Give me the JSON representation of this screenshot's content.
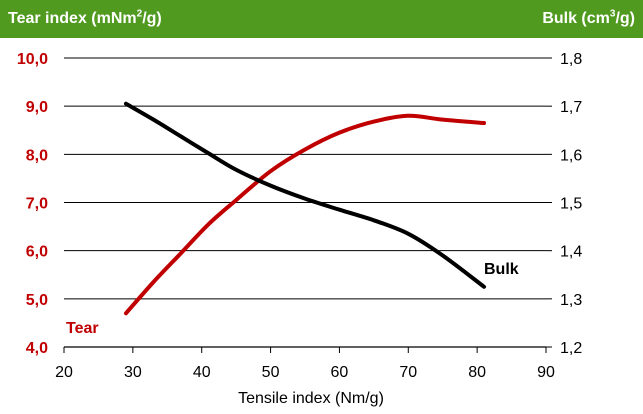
{
  "header": {
    "left_title_prefix": "Tear index (mNm",
    "left_title_sup": "2",
    "left_title_suffix": "/g)",
    "right_title_prefix": "Bulk (cm",
    "right_title_sup": "3",
    "right_title_suffix": "/g)"
  },
  "colors": {
    "header_bg": "#4f9a1f",
    "tear": "#c00000",
    "bulk": "#000000"
  },
  "chart_data": {
    "type": "line",
    "xlabel": "Tensile index (Nm/g)",
    "xlim": [
      20,
      90
    ],
    "x_ticks": [
      "20",
      "30",
      "40",
      "50",
      "60",
      "70",
      "80",
      "90"
    ],
    "x_tick_values": [
      20,
      30,
      40,
      50,
      60,
      70,
      80,
      90
    ],
    "y_left": {
      "ylim": [
        4.0,
        10.0
      ],
      "ticks": [
        "4,0",
        "5,0",
        "6,0",
        "7,0",
        "8,0",
        "9,0",
        "10,0"
      ],
      "tick_values": [
        4,
        5,
        6,
        7,
        8,
        9,
        10
      ]
    },
    "y_right": {
      "ylim": [
        1.2,
        1.8
      ],
      "ticks": [
        "1,2",
        "1,3",
        "1,4",
        "1,5",
        "1,6",
        "1,7",
        "1,8"
      ],
      "tick_values": [
        1.2,
        1.3,
        1.4,
        1.5,
        1.6,
        1.7,
        1.8
      ]
    },
    "grid": true,
    "series": [
      {
        "name": "Tear",
        "axis": "left",
        "x": [
          29,
          33,
          37,
          41,
          45,
          50,
          55,
          60,
          65,
          70,
          75,
          81
        ],
        "y": [
          4.7,
          5.35,
          5.95,
          6.55,
          7.05,
          7.65,
          8.1,
          8.45,
          8.68,
          8.8,
          8.72,
          8.65
        ]
      },
      {
        "name": "Bulk",
        "axis": "right",
        "x": [
          29,
          33,
          37,
          41,
          45,
          50,
          55,
          60,
          65,
          70,
          75,
          81
        ],
        "y": [
          1.705,
          1.672,
          1.637,
          1.602,
          1.568,
          1.535,
          1.508,
          1.485,
          1.463,
          1.435,
          1.39,
          1.325
        ]
      }
    ]
  }
}
